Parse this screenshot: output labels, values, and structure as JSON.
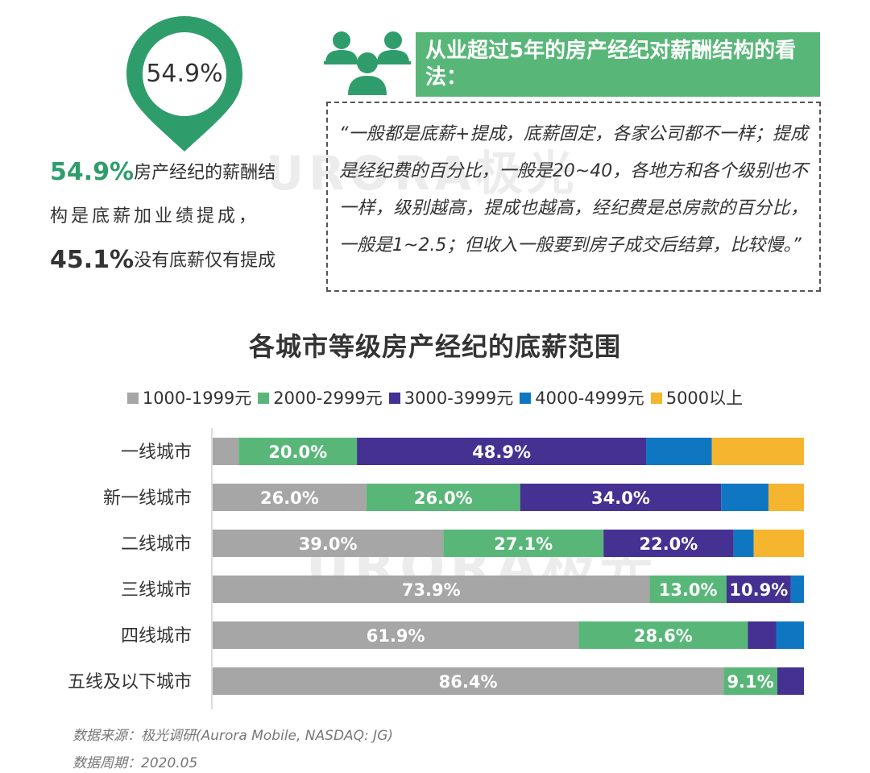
{
  "badge": {
    "percent": "54.9%",
    "color": "#2f9d6b"
  },
  "summary": {
    "line1_big": "54.9%",
    "line1_text": "房产经纪的薪酬结",
    "line2_text": "构是底薪加业绩提成，",
    "line3_big": "45.1%",
    "line3_text": "没有底薪仅有提成"
  },
  "header": {
    "title": "从业超过5年的房产经纪对薪酬结构的看法：",
    "color": "#58b778"
  },
  "quote": {
    "text": "“一般都是底薪+提成，底薪固定，各家公司都不一样；提成是经纪费的百分比，一般是20~40，各地方和各个级别也不一样，级别越高，提成也越高，经纪费是总房款的百分比，一般是1~2.5；但收入一般要到房子成交后结算，比较慢。”"
  },
  "watermark": {
    "text1": "URORA极光",
    "text2": "URORA极光"
  },
  "chart_data": {
    "type": "bar",
    "orientation": "horizontal",
    "stacked": true,
    "percent_stacked": true,
    "title": "各城市等级房产经纪的底薪范围",
    "categories": [
      "一线城市",
      "新一线城市",
      "二线城市",
      "三线城市",
      "四线城市",
      "五线及以下城市"
    ],
    "series": [
      {
        "name": "1000-1999元",
        "color": "#a6a6a6",
        "values": [
          4.4,
          26.0,
          39.0,
          73.9,
          61.9,
          86.4
        ]
      },
      {
        "name": "2000-2999元",
        "color": "#58b778",
        "values": [
          20.0,
          26.0,
          27.1,
          13.0,
          28.6,
          9.1
        ]
      },
      {
        "name": "3000-3999元",
        "color": "#443192",
        "values": [
          48.9,
          34.0,
          22.0,
          10.9,
          4.8,
          4.5
        ]
      },
      {
        "name": "4000-4999元",
        "color": "#0f77c2",
        "values": [
          11.1,
          8.0,
          3.4,
          2.2,
          4.7,
          0
        ]
      },
      {
        "name": "5000以上",
        "color": "#f6b52e",
        "values": [
          15.6,
          6.0,
          8.5,
          0,
          0,
          0
        ]
      }
    ],
    "labels": [
      [
        "",
        "20.0%",
        "48.9%",
        "",
        ""
      ],
      [
        "26.0%",
        "26.0%",
        "34.0%",
        "",
        ""
      ],
      [
        "39.0%",
        "27.1%",
        "22.0%",
        "",
        ""
      ],
      [
        "73.9%",
        "13.0%",
        "10.9%",
        "",
        ""
      ],
      [
        "61.9%",
        "28.6%",
        "",
        "",
        ""
      ],
      [
        "86.4%",
        "9.1%",
        "",
        "",
        ""
      ]
    ],
    "xlim": [
      0,
      100
    ],
    "legend_position": "top"
  },
  "footer": {
    "source": "数据来源：极光调研(Aurora Mobile, NASDAQ: JG)",
    "period": "数据周期：2020.05"
  }
}
